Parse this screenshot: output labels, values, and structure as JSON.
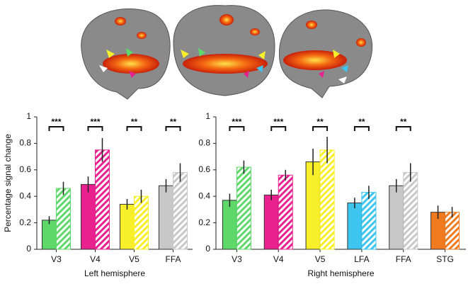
{
  "chart_data": [
    {
      "type": "bar",
      "x_label": "Left hemisphere",
      "y_label": "Percentage signal change",
      "categories": [
        "V3",
        "V4",
        "V5",
        "FFA"
      ],
      "colors": [
        "#5fd86a",
        "#e8218f",
        "#f7ef2a",
        "#c8c8c8"
      ],
      "series": [
        {
          "values": [
            0.22,
            0.49,
            0.34,
            0.48
          ],
          "errors": [
            0.03,
            0.06,
            0.04,
            0.05
          ]
        },
        {
          "hatched": true,
          "values": [
            0.46,
            0.75,
            0.4,
            0.58
          ],
          "errors": [
            0.05,
            0.09,
            0.05,
            0.07
          ]
        }
      ],
      "significance": [
        "***",
        "***",
        "**",
        "**"
      ],
      "ylim": [
        0,
        1
      ],
      "yticks": [
        0,
        0.2,
        0.4,
        0.6,
        0.8,
        1
      ]
    },
    {
      "type": "bar",
      "x_label": "Right hemisphere",
      "categories": [
        "V3",
        "V4",
        "V5",
        "LFA",
        "FFA",
        "STG"
      ],
      "colors": [
        "#5fd86a",
        "#e8218f",
        "#f7ef2a",
        "#3ec5ef",
        "#c8c8c8",
        "#f07a1e"
      ],
      "series": [
        {
          "values": [
            0.37,
            0.41,
            0.66,
            0.35,
            0.48,
            0.28
          ],
          "errors": [
            0.05,
            0.04,
            0.1,
            0.04,
            0.05,
            0.05
          ]
        },
        {
          "hatched": true,
          "values": [
            0.62,
            0.56,
            0.75,
            0.43,
            0.58,
            0.28
          ],
          "errors": [
            0.05,
            0.04,
            0.1,
            0.05,
            0.07,
            0.04
          ]
        }
      ],
      "significance": [
        "***",
        "***",
        "**",
        "**",
        "**",
        null
      ],
      "ylim": [
        0,
        1
      ],
      "yticks": [
        0,
        0.2,
        0.4,
        0.6,
        0.8,
        1
      ]
    }
  ]
}
